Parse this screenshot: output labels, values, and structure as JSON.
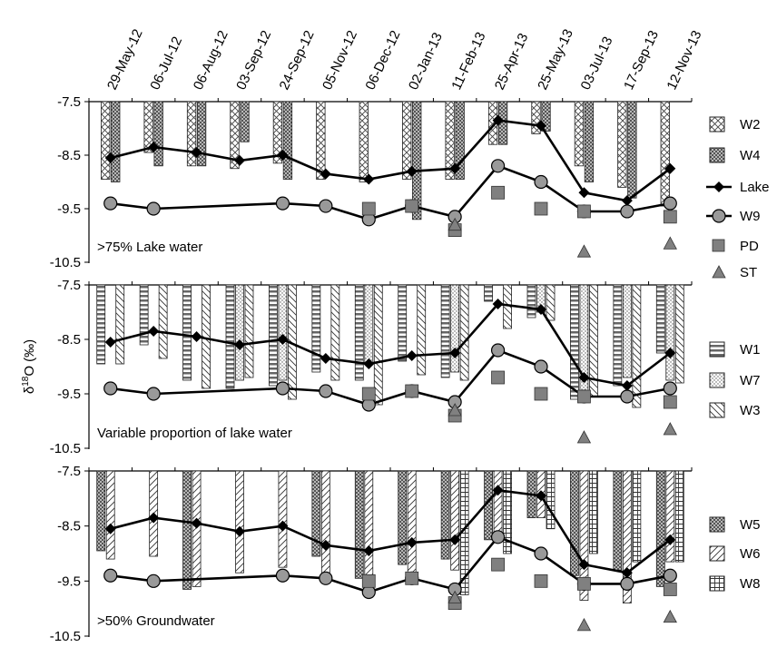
{
  "chart_data": {
    "type": "bar",
    "ylabel": "δ18O (‰)",
    "ylabel_main": "δ",
    "ylabel_sup": "18",
    "ylabel_rest": "O (‰)",
    "ylim": [
      -10.5,
      -7.5
    ],
    "yticks": [
      "-7.5",
      "-8.5",
      "-9.5",
      "-10.5"
    ],
    "categories": [
      "29-May-12",
      "06-Jul-12",
      "06-Aug-12",
      "03-Sep-12",
      "24-Sep-12",
      "05-Nov-12",
      "06-Dec-12",
      "02-Jan-13",
      "11-Feb-13",
      "25-Apr-13",
      "25-May-13",
      "03-Jul-13",
      "17-Sep-13",
      "12-Nov-13"
    ],
    "lines": [
      {
        "name": "Lake",
        "marker": "diamond",
        "values": [
          -8.55,
          -8.35,
          -8.45,
          -8.6,
          -8.5,
          -8.85,
          -8.95,
          -8.8,
          -8.75,
          -7.85,
          -7.95,
          -9.2,
          -9.35,
          -8.75
        ]
      },
      {
        "name": "W9",
        "marker": "circle",
        "values": [
          -9.4,
          -9.5,
          null,
          null,
          -9.4,
          -9.45,
          -9.7,
          -9.45,
          -9.65,
          -8.7,
          -9.0,
          -9.55,
          -9.55,
          -9.4
        ]
      }
    ],
    "points": [
      {
        "name": "PD",
        "marker": "square",
        "values": [
          null,
          null,
          null,
          null,
          null,
          null,
          -9.5,
          -9.45,
          -9.9,
          -9.2,
          -9.5,
          -9.55,
          null,
          -9.65
        ]
      },
      {
        "name": "ST",
        "marker": "triangle",
        "values": [
          null,
          null,
          null,
          null,
          null,
          null,
          null,
          null,
          -9.8,
          null,
          null,
          -10.3,
          null,
          -10.15
        ]
      }
    ],
    "panels": [
      {
        "label": ">75% Lake water",
        "bars": [
          {
            "name": "W2",
            "pattern": "cross",
            "values": [
              -8.95,
              -8.45,
              -8.7,
              -8.75,
              -8.65,
              -8.95,
              -9.0,
              -8.95,
              -8.95,
              -8.3,
              -8.1,
              -8.7,
              -9.1,
              -9.45
            ]
          },
          {
            "name": "W4",
            "pattern": "dots",
            "values": [
              -9.0,
              -8.7,
              -8.7,
              -8.25,
              -8.95,
              null,
              null,
              -9.7,
              -8.95,
              -8.3,
              -8.05,
              -9.0,
              -9.3,
              null
            ]
          }
        ]
      },
      {
        "label": "Variable proportion of lake water",
        "bars": [
          {
            "name": "W1",
            "pattern": "hstripes",
            "values": [
              -8.95,
              -8.6,
              -9.25,
              -9.4,
              -9.35,
              -9.1,
              -9.25,
              -8.9,
              -9.2,
              -7.8,
              -8.1,
              -9.6,
              -9.35,
              -8.75
            ]
          },
          {
            "name": "W7",
            "pattern": "finedots",
            "values": [
              null,
              null,
              null,
              -9.25,
              -9.25,
              null,
              -8.95,
              null,
              -9.1,
              null,
              -8.0,
              -9.6,
              -9.2,
              -9.25
            ]
          },
          {
            "name": "W3",
            "pattern": "diagonal",
            "values": [
              -8.95,
              -8.85,
              -9.4,
              -9.2,
              -9.6,
              -9.25,
              -9.7,
              -9.15,
              -9.25,
              -8.3,
              -8.15,
              -9.55,
              -9.75,
              -9.3
            ]
          }
        ]
      },
      {
        "label": ">50% Groundwater",
        "bars": [
          {
            "name": "W5",
            "pattern": "dots",
            "values": [
              -8.95,
              null,
              -9.65,
              null,
              null,
              -9.05,
              -9.45,
              -9.2,
              -9.1,
              -8.75,
              -8.35,
              -9.4,
              -9.3,
              -9.6
            ]
          },
          {
            "name": "W6",
            "pattern": "rdiagonal",
            "values": [
              -9.1,
              -9.05,
              -9.6,
              -9.35,
              -9.25,
              -9.35,
              -9.4,
              -9.35,
              -9.3,
              -8.7,
              -8.35,
              -9.85,
              -9.9,
              -9.15
            ]
          },
          {
            "name": "W8",
            "pattern": "grid",
            "values": [
              null,
              null,
              null,
              null,
              null,
              null,
              null,
              null,
              -9.75,
              -9.0,
              -8.55,
              -9.0,
              -9.15,
              -9.15
            ]
          }
        ]
      }
    ]
  }
}
